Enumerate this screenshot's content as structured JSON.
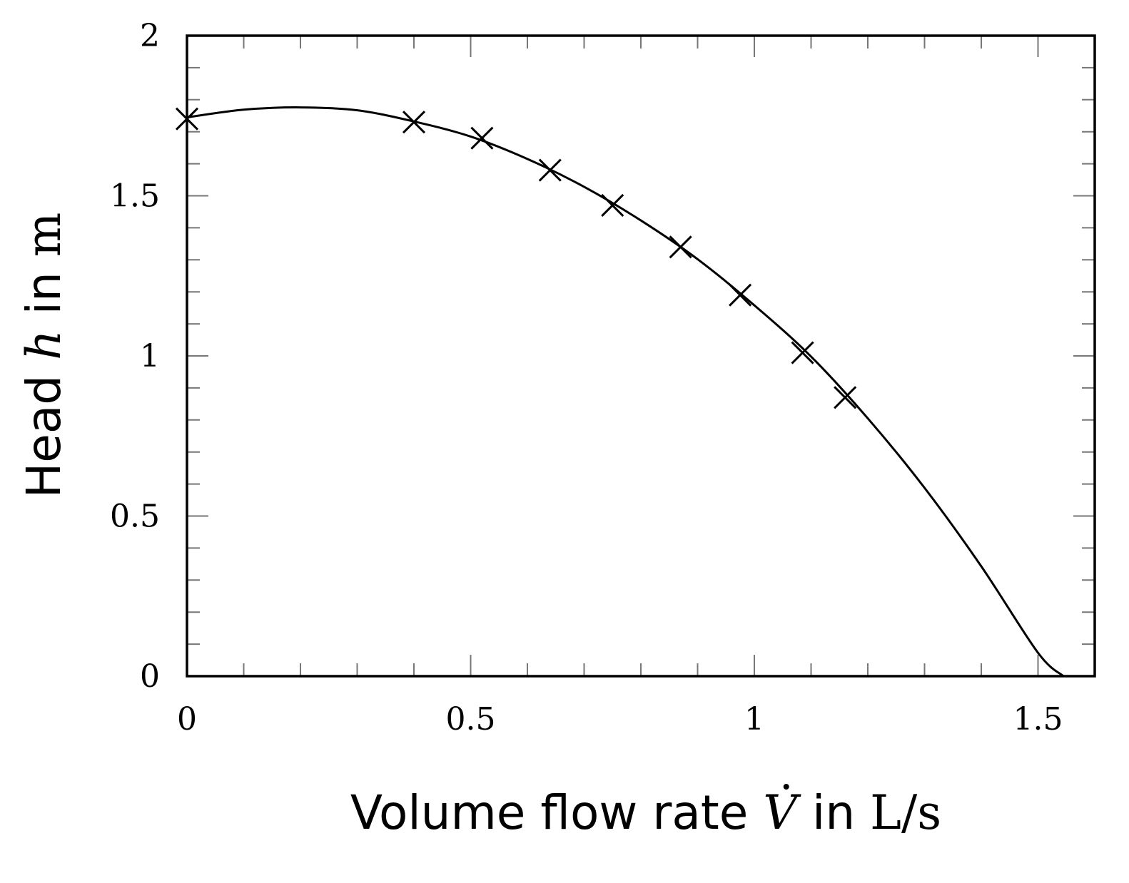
{
  "chart_data": {
    "type": "line",
    "xlabel": {
      "prefix": "Volume flow rate ",
      "symbol": "V",
      "mid": " in ",
      "unit": "L/s"
    },
    "ylabel": {
      "prefix": "Head ",
      "symbol": "h",
      "mid": " in ",
      "unit": "m"
    },
    "xlim": [
      0,
      1.6
    ],
    "ylim": [
      0,
      2
    ],
    "x_ticks": [
      {
        "value": 0,
        "label": "0"
      },
      {
        "value": 0.5,
        "label": "0.5"
      },
      {
        "value": 1,
        "label": "1"
      },
      {
        "value": 1.5,
        "label": "1.5"
      }
    ],
    "y_ticks": [
      {
        "value": 0,
        "label": "0"
      },
      {
        "value": 0.5,
        "label": "0.5"
      },
      {
        "value": 1,
        "label": "1"
      },
      {
        "value": 1.5,
        "label": "1.5"
      },
      {
        "value": 2,
        "label": "2"
      }
    ],
    "x_minor_step": 0.1,
    "y_minor_step": 0.1,
    "grid": false,
    "series": [
      {
        "kind": "measured",
        "marker": "cross",
        "points": [
          {
            "x": 0,
            "y": 1.74
          },
          {
            "x": 0.4,
            "y": 1.73
          },
          {
            "x": 0.52,
            "y": 1.68
          },
          {
            "x": 0.64,
            "y": 1.58
          },
          {
            "x": 0.75,
            "y": 1.47
          },
          {
            "x": 0.87,
            "y": 1.34
          },
          {
            "x": 0.975,
            "y": 1.19
          },
          {
            "x": 1.085,
            "y": 1.01
          },
          {
            "x": 1.16,
            "y": 0.87
          }
        ]
      },
      {
        "kind": "fit",
        "marker": "none",
        "points": [
          {
            "x": 0,
            "y": 1.745
          },
          {
            "x": 0.1,
            "y": 1.769
          },
          {
            "x": 0.2,
            "y": 1.776
          },
          {
            "x": 0.3,
            "y": 1.767
          },
          {
            "x": 0.4,
            "y": 1.732
          },
          {
            "x": 0.5,
            "y": 1.685
          },
          {
            "x": 0.6,
            "y": 1.615
          },
          {
            "x": 0.7,
            "y": 1.528
          },
          {
            "x": 0.8,
            "y": 1.423
          },
          {
            "x": 0.9,
            "y": 1.302
          },
          {
            "x": 1.0,
            "y": 1.158
          },
          {
            "x": 1.1,
            "y": 0.998
          },
          {
            "x": 1.2,
            "y": 0.805
          },
          {
            "x": 1.3,
            "y": 0.588
          },
          {
            "x": 1.4,
            "y": 0.343
          },
          {
            "x": 1.5,
            "y": 0.073
          },
          {
            "x": 1.545,
            "y": 0.0
          }
        ]
      }
    ]
  }
}
